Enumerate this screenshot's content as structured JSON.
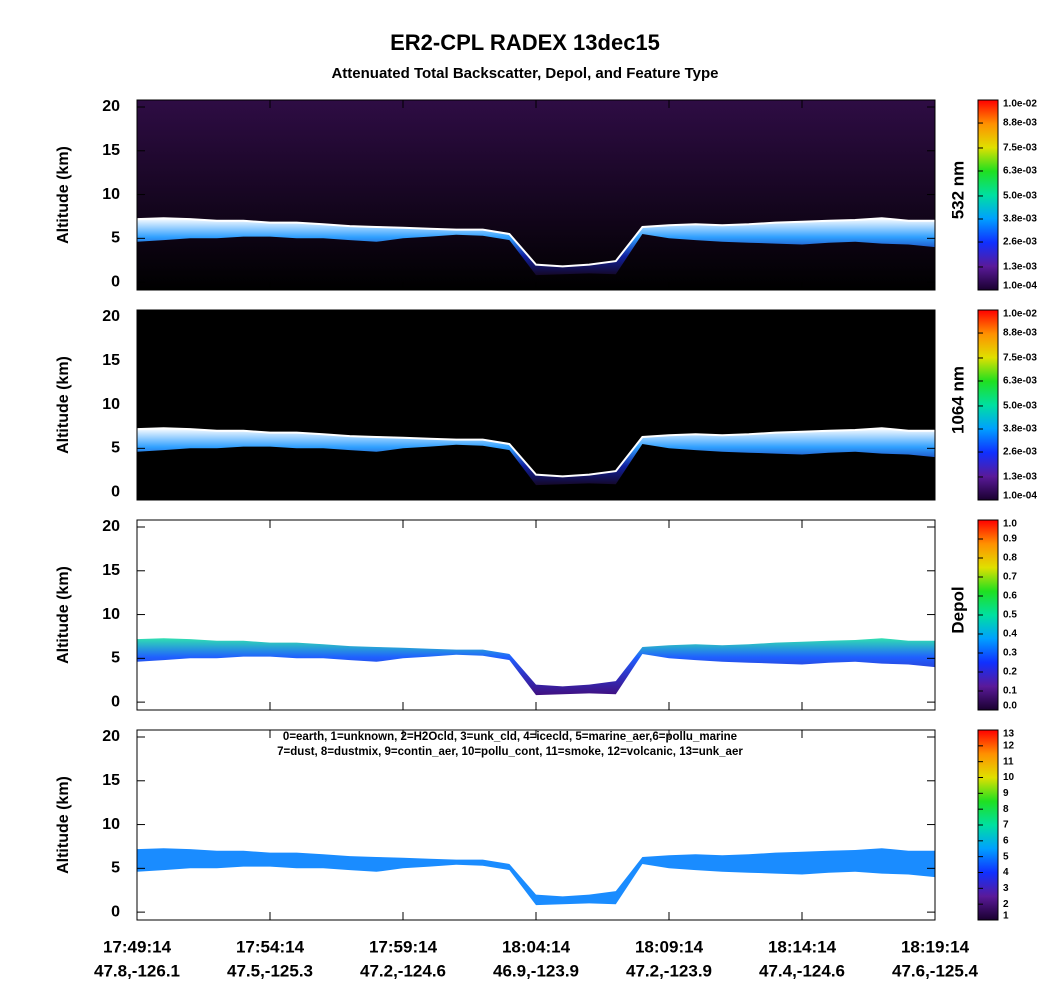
{
  "chart_data": {
    "type": "curtain",
    "title": "ER2-CPL RADEX 13dec15",
    "subtitle": "Attenuated Total Backscatter, Depol, and Feature Type",
    "ylabel": "Altitude (km)",
    "ylim": [
      -0.9,
      20.8
    ],
    "yticks": [
      0,
      5,
      10,
      15,
      20
    ],
    "xlim": [
      0,
      30
    ],
    "xticks": [
      {
        "value": 0,
        "label": "17:49:14",
        "sublabel": "47.8,-126.1"
      },
      {
        "value": 5,
        "label": "17:54:14",
        "sublabel": "47.5,-125.3"
      },
      {
        "value": 10,
        "label": "17:59:14",
        "sublabel": "47.2,-124.6"
      },
      {
        "value": 15,
        "label": "18:04:14",
        "sublabel": "46.9,-123.9"
      },
      {
        "value": 20,
        "label": "18:09:14",
        "sublabel": "47.2,-123.9"
      },
      {
        "value": 25,
        "label": "18:14:14",
        "sublabel": "47.4,-124.6"
      },
      {
        "value": 30,
        "label": "18:19:14",
        "sublabel": "47.6,-125.4"
      }
    ],
    "layer": {
      "x": [
        0,
        1,
        2,
        3,
        4,
        5,
        6,
        7,
        8,
        9,
        10,
        11,
        12,
        13,
        14,
        15,
        16,
        17,
        18,
        19,
        20,
        21,
        22,
        23,
        24,
        25,
        26,
        27,
        28,
        29,
        30
      ],
      "top": [
        7.2,
        7.3,
        7.2,
        7.0,
        7.0,
        6.8,
        6.8,
        6.6,
        6.4,
        6.3,
        6.2,
        6.1,
        6.0,
        6.0,
        5.5,
        2.0,
        1.8,
        2.0,
        2.4,
        6.3,
        6.5,
        6.6,
        6.5,
        6.6,
        6.8,
        6.9,
        7.0,
        7.1,
        7.3,
        7.0,
        7.0
      ],
      "base": [
        4.6,
        4.8,
        5.0,
        5.0,
        5.2,
        5.2,
        5.0,
        5.0,
        4.8,
        4.6,
        5.0,
        5.2,
        5.4,
        5.3,
        4.8,
        0.8,
        0.9,
        1.0,
        0.9,
        5.5,
        5.0,
        4.8,
        4.6,
        4.5,
        4.4,
        4.3,
        4.5,
        4.6,
        4.4,
        4.3,
        4.0
      ]
    },
    "colormap": [
      "#1a0030",
      "#5a1a9a",
      "#1030ff",
      "#00a0ff",
      "#00e0a0",
      "#20e020",
      "#e0e000",
      "#ff9000",
      "#ff0000"
    ],
    "panels": [
      {
        "colorbar_title": "532 nm",
        "clim": [
          0.0001,
          0.01
        ],
        "colorbar_ticks": [
          {
            "value": 0.0001,
            "label": "1.0e-04"
          },
          {
            "value": 0.0013,
            "label": "1.3e-03"
          },
          {
            "value": 0.0026,
            "label": "2.6e-03"
          },
          {
            "value": 0.0038,
            "label": "3.8e-03"
          },
          {
            "value": 0.005,
            "label": "5.0e-03"
          },
          {
            "value": 0.0063,
            "label": "6.3e-03"
          },
          {
            "value": 0.0075,
            "label": "7.5e-03"
          },
          {
            "value": 0.0088,
            "label": "8.8e-03"
          },
          {
            "value": 0.01,
            "label": "1.0e-02"
          }
        ],
        "background": [
          "#2e0c44",
          "#000000"
        ],
        "layer_colors": [
          "#ffffff",
          "#30a0ff",
          "#1020a0",
          "#140828"
        ],
        "top_line": "#ffffff"
      },
      {
        "colorbar_title": "1064 nm",
        "clim": [
          0.0001,
          0.01
        ],
        "colorbar_ticks": [
          {
            "value": 0.0001,
            "label": "1.0e-04"
          },
          {
            "value": 0.0013,
            "label": "1.3e-03"
          },
          {
            "value": 0.0026,
            "label": "2.6e-03"
          },
          {
            "value": 0.0038,
            "label": "3.8e-03"
          },
          {
            "value": 0.005,
            "label": "5.0e-03"
          },
          {
            "value": 0.0063,
            "label": "6.3e-03"
          },
          {
            "value": 0.0075,
            "label": "7.5e-03"
          },
          {
            "value": 0.0088,
            "label": "8.8e-03"
          },
          {
            "value": 0.01,
            "label": "1.0e-02"
          }
        ],
        "background": [
          "#000000",
          "#000000"
        ],
        "layer_colors": [
          "#ffffff",
          "#30a0ff",
          "#1020a0",
          "#140828"
        ],
        "top_line": "#ffffff"
      },
      {
        "colorbar_title": "Depol",
        "clim": [
          0,
          1
        ],
        "colorbar_ticks": [
          {
            "value": 0,
            "label": "0.0"
          },
          0.1,
          0.2,
          0.3,
          0.4,
          0.5,
          0.6,
          0.7,
          0.8,
          0.9,
          {
            "value": 1,
            "label": "1.0"
          }
        ],
        "background": [
          "#ffffff",
          "#ffffff"
        ],
        "layer_colors": [
          "#30e0b0",
          "#2060ff",
          "#3030c0",
          "#401080"
        ]
      },
      {
        "clim": [
          1,
          13
        ],
        "colorbar_ticks": [
          1,
          2,
          3,
          4,
          5,
          6,
          7,
          8,
          9,
          10,
          11,
          12,
          13
        ],
        "legend": [
          "0=earth, 1=unknown, 2=H2Ocld, 3=unk_cld, 4=icecld, 5=marine_aer,6=pollu_marine",
          "7=dust, 8=dustmix, 9=contin_aer, 10=pollu_cont, 11=smoke, 12=volcanic, 13=unk_aer"
        ],
        "background": [
          "#ffffff",
          "#ffffff"
        ],
        "layer_colors": [
          "#1a8cff",
          "#1a8cff"
        ]
      }
    ]
  }
}
